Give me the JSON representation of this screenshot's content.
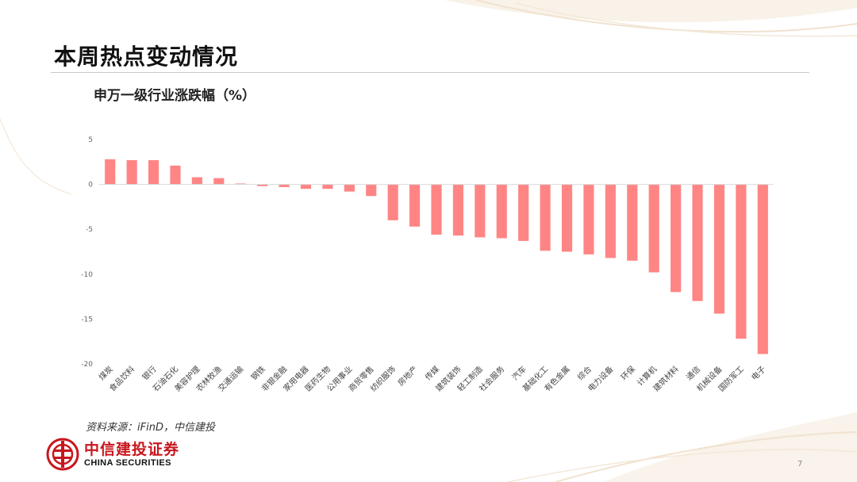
{
  "page": {
    "title": "本周热点变动情况",
    "source": "资料来源：iFinD，中信建投",
    "page_number": "7"
  },
  "brand": {
    "name_cn": "中信建投证券",
    "name_en": "CHINA SECURITIES",
    "color": "#c8161d"
  },
  "chart_data": {
    "type": "bar",
    "title": "申万一级行业涨跌幅（%）",
    "xlabel": "",
    "ylabel": "",
    "ylim": [
      -20,
      5
    ],
    "yticks": [
      5,
      0,
      -5,
      -10,
      -15,
      -20
    ],
    "grid": false,
    "bar_color": "#ff8585",
    "categories": [
      "煤炭",
      "食品饮料",
      "银行",
      "石油石化",
      "美容护理",
      "农林牧渔",
      "交通运输",
      "钢铁",
      "非银金融",
      "家用电器",
      "医药生物",
      "公用事业",
      "商贸零售",
      "纺织服饰",
      "房地产",
      "传媒",
      "建筑装饰",
      "轻工制造",
      "社会服务",
      "汽车",
      "基础化工",
      "有色金属",
      "综合",
      "电力设备",
      "环保",
      "计算机",
      "建筑材料",
      "通信",
      "机械设备",
      "国防军工",
      "电子"
    ],
    "values": [
      2.8,
      2.7,
      2.7,
      2.1,
      0.8,
      0.7,
      0.1,
      -0.2,
      -0.3,
      -0.5,
      -0.5,
      -0.8,
      -1.3,
      -4.0,
      -4.7,
      -5.6,
      -5.7,
      -5.9,
      -6.0,
      -6.3,
      -7.4,
      -7.5,
      -7.8,
      -8.2,
      -8.5,
      -9.8,
      -12.0,
      -13.0,
      -14.4,
      -17.2,
      -18.9
    ]
  }
}
